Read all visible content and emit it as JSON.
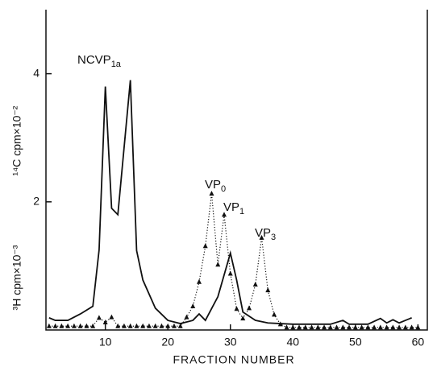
{
  "chart_data": {
    "type": "line",
    "xlabel": "FRACTION NUMBER",
    "ylabel_top": "¹⁴C cpm×10⁻²",
    "ylabel_bottom": "³H cpm×10⁻³",
    "xlim": [
      0.5,
      61.5
    ],
    "ylim": [
      0,
      5
    ],
    "xticks": [
      10,
      20,
      30,
      40,
      50,
      60
    ],
    "yticks": [
      2,
      4
    ],
    "annotations": [
      {
        "text": "NCVP",
        "sub": "1a"
      },
      {
        "text": "VP",
        "sub": "0"
      },
      {
        "text": "VP",
        "sub": "1"
      },
      {
        "text": "VP",
        "sub": "3"
      }
    ],
    "series": [
      {
        "style": "solid",
        "color": "#111111",
        "x": [
          1,
          2,
          4,
          6,
          8,
          9,
          10,
          11,
          12,
          14,
          15,
          16,
          18,
          20,
          22,
          24,
          25,
          26,
          28,
          30,
          31,
          32,
          34,
          36,
          38,
          40,
          46,
          48,
          49,
          52,
          54,
          55,
          56,
          57,
          58,
          59
        ],
        "values": [
          0.19,
          0.15,
          0.15,
          0.25,
          0.37,
          1.25,
          3.8,
          1.9,
          1.8,
          3.9,
          1.24,
          0.78,
          0.34,
          0.15,
          0.1,
          0.15,
          0.25,
          0.15,
          0.52,
          1.2,
          0.78,
          0.28,
          0.15,
          0.11,
          0.1,
          0.09,
          0.09,
          0.15,
          0.09,
          0.09,
          0.18,
          0.11,
          0.16,
          0.11,
          0.15,
          0.19
        ]
      },
      {
        "style": "dotted",
        "marker": "triangle",
        "color": "#111111",
        "x": [
          1,
          2,
          3,
          4,
          5,
          6,
          7,
          8,
          9,
          10,
          11,
          12,
          13,
          14,
          15,
          16,
          17,
          18,
          19,
          20,
          21,
          22,
          23,
          24,
          25,
          26,
          27,
          28,
          29,
          30,
          31,
          32,
          33,
          34,
          35,
          36,
          37,
          38,
          39,
          40,
          41,
          42,
          43,
          44,
          45,
          46,
          47,
          48,
          49,
          50,
          51,
          52,
          53,
          54,
          55,
          56,
          57,
          58,
          59,
          60
        ],
        "values": [
          0.06,
          0.06,
          0.06,
          0.06,
          0.06,
          0.06,
          0.06,
          0.06,
          0.19,
          0.12,
          0.2,
          0.06,
          0.06,
          0.06,
          0.06,
          0.06,
          0.06,
          0.06,
          0.06,
          0.06,
          0.06,
          0.06,
          0.2,
          0.37,
          0.75,
          1.31,
          2.13,
          1.02,
          1.8,
          0.88,
          0.33,
          0.18,
          0.34,
          0.71,
          1.44,
          0.62,
          0.24,
          0.09,
          0.04,
          0.04,
          0.04,
          0.04,
          0.04,
          0.04,
          0.04,
          0.04,
          0.04,
          0.04,
          0.04,
          0.04,
          0.04,
          0.04,
          0.04,
          0.04,
          0.04,
          0.04,
          0.04,
          0.04,
          0.04,
          0.04
        ]
      }
    ]
  }
}
